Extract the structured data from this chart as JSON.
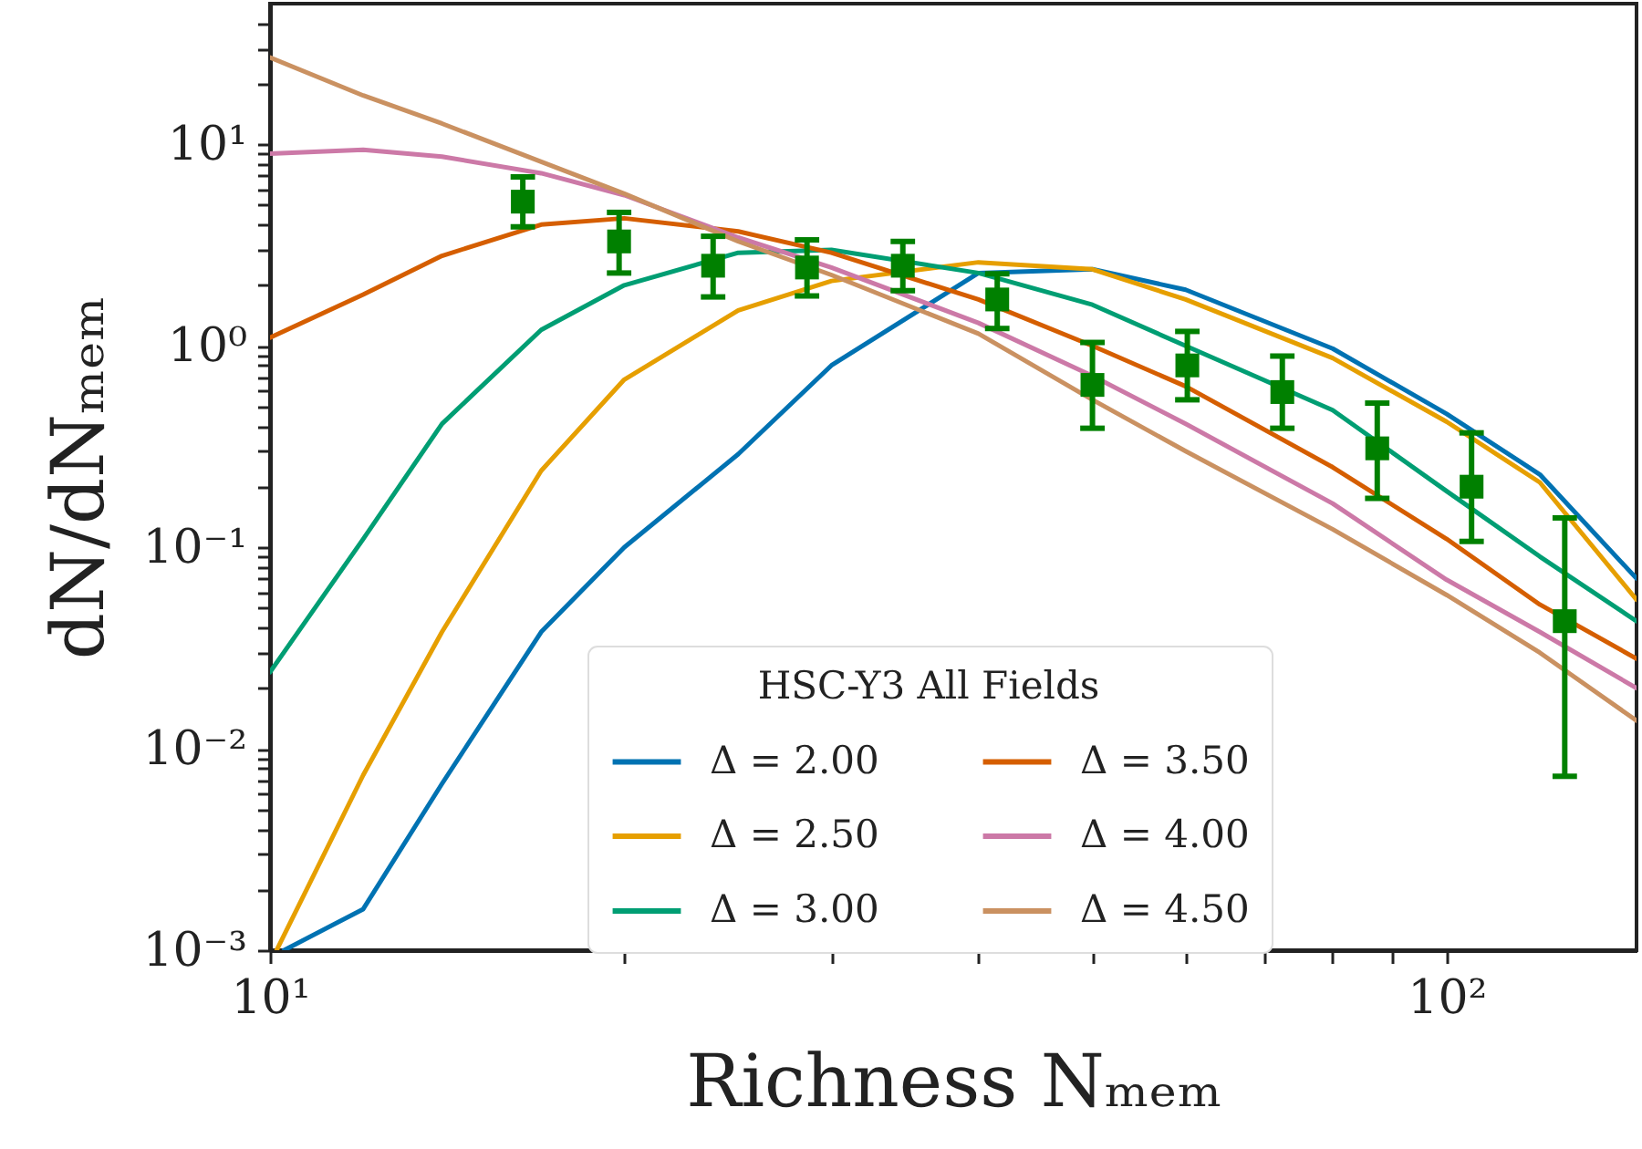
{
  "chart_data": {
    "type": "line",
    "xlabel": "Richness Nₘₑₘ",
    "ylabel": "dN/dNₘₑₘ",
    "legend_title": "HSC-Y3 All Fields",
    "legend": "bottom",
    "log": "xy",
    "grid": false,
    "xlim": [
      10,
      145
    ],
    "ylim": [
      0.001,
      50
    ],
    "xticks": [
      {
        "value": 10,
        "label": "10¹"
      },
      {
        "value": 20,
        "label": null
      },
      {
        "value": 30,
        "label": null
      },
      {
        "value": 40,
        "label": null
      },
      {
        "value": 50,
        "label": null
      },
      {
        "value": 60,
        "label": null
      },
      {
        "value": 70,
        "label": null
      },
      {
        "value": 80,
        "label": null
      },
      {
        "value": 90,
        "label": null
      },
      {
        "value": 100,
        "label": "10²"
      }
    ],
    "yticks": [
      {
        "value": 0.001,
        "label": "10⁻³"
      },
      {
        "value": 0.002,
        "label": null
      },
      {
        "value": 0.003,
        "label": null
      },
      {
        "value": 0.004,
        "label": null
      },
      {
        "value": 0.005,
        "label": null
      },
      {
        "value": 0.006,
        "label": null
      },
      {
        "value": 0.007,
        "label": null
      },
      {
        "value": 0.008,
        "label": null
      },
      {
        "value": 0.009,
        "label": null
      },
      {
        "value": 0.01,
        "label": "10⁻²"
      },
      {
        "value": 0.02,
        "label": null
      },
      {
        "value": 0.03,
        "label": null
      },
      {
        "value": 0.04,
        "label": null
      },
      {
        "value": 0.05,
        "label": null
      },
      {
        "value": 0.06,
        "label": null
      },
      {
        "value": 0.07,
        "label": null
      },
      {
        "value": 0.08,
        "label": null
      },
      {
        "value": 0.09,
        "label": null
      },
      {
        "value": 0.1,
        "label": "10⁻¹"
      },
      {
        "value": 0.2,
        "label": null
      },
      {
        "value": 0.3,
        "label": null
      },
      {
        "value": 0.4,
        "label": null
      },
      {
        "value": 0.5,
        "label": null
      },
      {
        "value": 0.6,
        "label": null
      },
      {
        "value": 0.7,
        "label": null
      },
      {
        "value": 0.8,
        "label": null
      },
      {
        "value": 0.9,
        "label": null
      },
      {
        "value": 1,
        "label": "10⁰"
      },
      {
        "value": 2,
        "label": null
      },
      {
        "value": 3,
        "label": null
      },
      {
        "value": 4,
        "label": null
      },
      {
        "value": 5,
        "label": null
      },
      {
        "value": 6,
        "label": null
      },
      {
        "value": 7,
        "label": null
      },
      {
        "value": 8,
        "label": null
      },
      {
        "value": 9,
        "label": null
      },
      {
        "value": 10,
        "label": "10¹"
      },
      {
        "value": 20,
        "label": null
      },
      {
        "value": 30,
        "label": null
      },
      {
        "value": 40,
        "label": null
      }
    ],
    "x": [
      10,
      12,
      14,
      17,
      20,
      25,
      30,
      40,
      50,
      60,
      80,
      100,
      120,
      145
    ],
    "series": [
      {
        "name": "Δ = 2.00",
        "color": "#0072b2",
        "x": [
          10.28,
          12,
          14,
          17,
          20,
          25,
          30,
          40,
          50,
          60,
          80,
          100,
          120,
          145
        ],
        "values": [
          0.001,
          0.0016,
          0.0067,
          0.038,
          0.1,
          0.29,
          0.8,
          2.3,
          2.4,
          1.9,
          0.97,
          0.46,
          0.23,
          0.07
        ]
      },
      {
        "name": "Δ = 2.50",
        "color": "#e69f00",
        "x": [
          10.13,
          12,
          14,
          17,
          20,
          25,
          30,
          40,
          50,
          60,
          80,
          100,
          120,
          145
        ],
        "values": [
          0.001,
          0.0074,
          0.038,
          0.24,
          0.68,
          1.5,
          2.1,
          2.6,
          2.4,
          1.7,
          0.87,
          0.42,
          0.21,
          0.055
        ]
      },
      {
        "name": "Δ = 3.00",
        "color": "#009e73",
        "values": [
          0.024,
          0.11,
          0.41,
          1.2,
          2.0,
          2.9,
          3.0,
          2.3,
          1.6,
          1.0,
          0.48,
          0.19,
          0.09,
          0.043
        ]
      },
      {
        "name": "Δ = 3.50",
        "color": "#d55e00",
        "values": [
          1.1,
          1.8,
          2.8,
          4.0,
          4.3,
          3.7,
          2.9,
          1.7,
          1.0,
          0.63,
          0.25,
          0.11,
          0.052,
          0.028
        ]
      },
      {
        "name": "Δ = 4.00",
        "color": "#cc79a7",
        "values": [
          9.0,
          9.4,
          8.7,
          7.2,
          5.6,
          3.45,
          2.45,
          1.3,
          0.71,
          0.41,
          0.165,
          0.069,
          0.038,
          0.02
        ]
      },
      {
        "name": "Δ = 4.50",
        "color": "#ca9161",
        "values": [
          27,
          17.5,
          12.7,
          8.2,
          5.7,
          3.3,
          2.25,
          1.15,
          0.54,
          0.3,
          0.123,
          0.058,
          0.03,
          0.0138
        ]
      },
      {
        "type": "scatter",
        "marker": "square",
        "color": "#008000",
        "x": [
          16.4,
          19.8,
          23.8,
          28.6,
          34.5,
          41.5,
          50,
          60.2,
          72.5,
          87.3,
          105,
          126
        ],
        "values": [
          5.2,
          3.3,
          2.5,
          2.45,
          2.5,
          1.7,
          0.64,
          0.8,
          0.59,
          0.31,
          0.2,
          0.043
        ],
        "errors": [
          [
            3.9,
            6.9
          ],
          [
            2.3,
            4.6
          ],
          [
            1.75,
            3.5
          ],
          [
            1.77,
            3.36
          ],
          [
            1.88,
            3.3
          ],
          [
            1.22,
            2.28
          ],
          [
            0.39,
            1.04
          ],
          [
            0.54,
            1.18
          ],
          [
            0.39,
            0.89
          ],
          [
            0.175,
            0.52
          ],
          [
            0.107,
            0.37
          ],
          [
            0.0073,
            0.14
          ]
        ]
      }
    ]
  }
}
